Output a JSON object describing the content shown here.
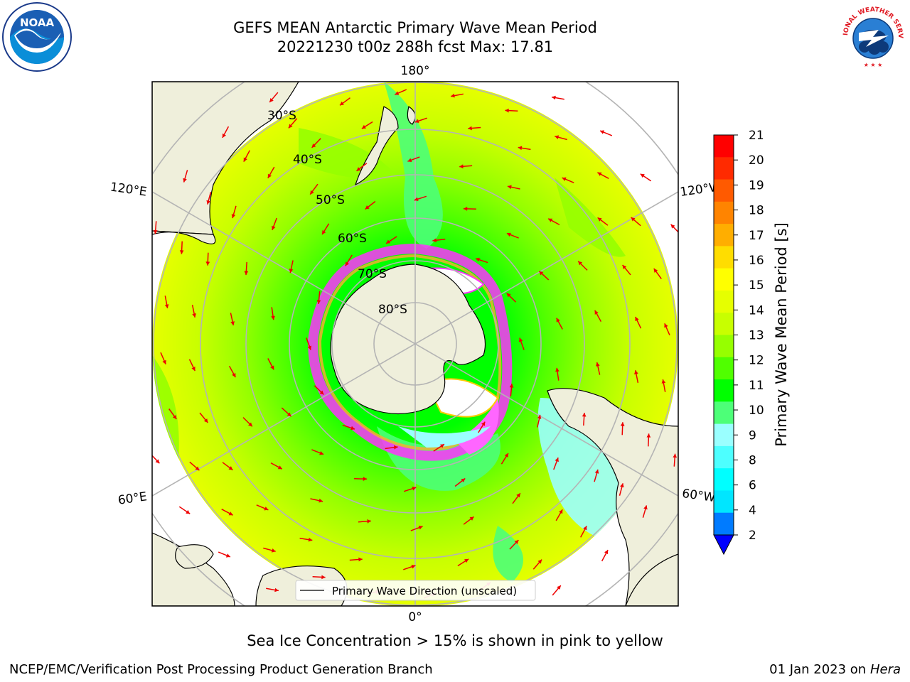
{
  "title_line1": "GEFS MEAN Antarctic Primary Wave Mean Period",
  "title_line2": "20221230 t00z 288h fcst   Max: 17.81",
  "logos": {
    "left": "NOAA",
    "right": "NATIONAL WEATHER SERVICE"
  },
  "longitude_labels": {
    "top": "180°",
    "bottom": "0°",
    "upper_left": "120°E",
    "upper_right": "120°W",
    "lower_left": "60°E",
    "lower_right": "60°W"
  },
  "latitude_labels": [
    "30°S",
    "40°S",
    "50°S",
    "60°S",
    "70°S",
    "80°S"
  ],
  "legend_text": "Primary Wave Direction (unscaled)",
  "colorbar": {
    "label": "Primary Wave Mean Period [s]",
    "ticks": [
      "21",
      "20",
      "19",
      "18",
      "17",
      "16",
      "15",
      "14",
      "13",
      "12",
      "11",
      "10",
      "9",
      "8",
      "6",
      "4",
      "2"
    ],
    "colors": [
      "#ff0000",
      "#ff2a00",
      "#ff5a00",
      "#ff8400",
      "#ffae00",
      "#ffdd00",
      "#ffff00",
      "#e6ff00",
      "#c8ff00",
      "#96ff00",
      "#50ff00",
      "#00ff00",
      "#4dff78",
      "#9affff",
      "#4dffff",
      "#00ffff",
      "#00e6ff",
      "#007bff"
    ],
    "extend_color": "#0000ff"
  },
  "ice_note": "Sea Ice Concentration > 15% is shown in pink to yellow",
  "footer_left": "NCEP/EMC/Verification Post Processing Product Generation Branch",
  "footer_right_prefix": "01 Jan 2023 on ",
  "footer_right_machine": "Hera"
}
